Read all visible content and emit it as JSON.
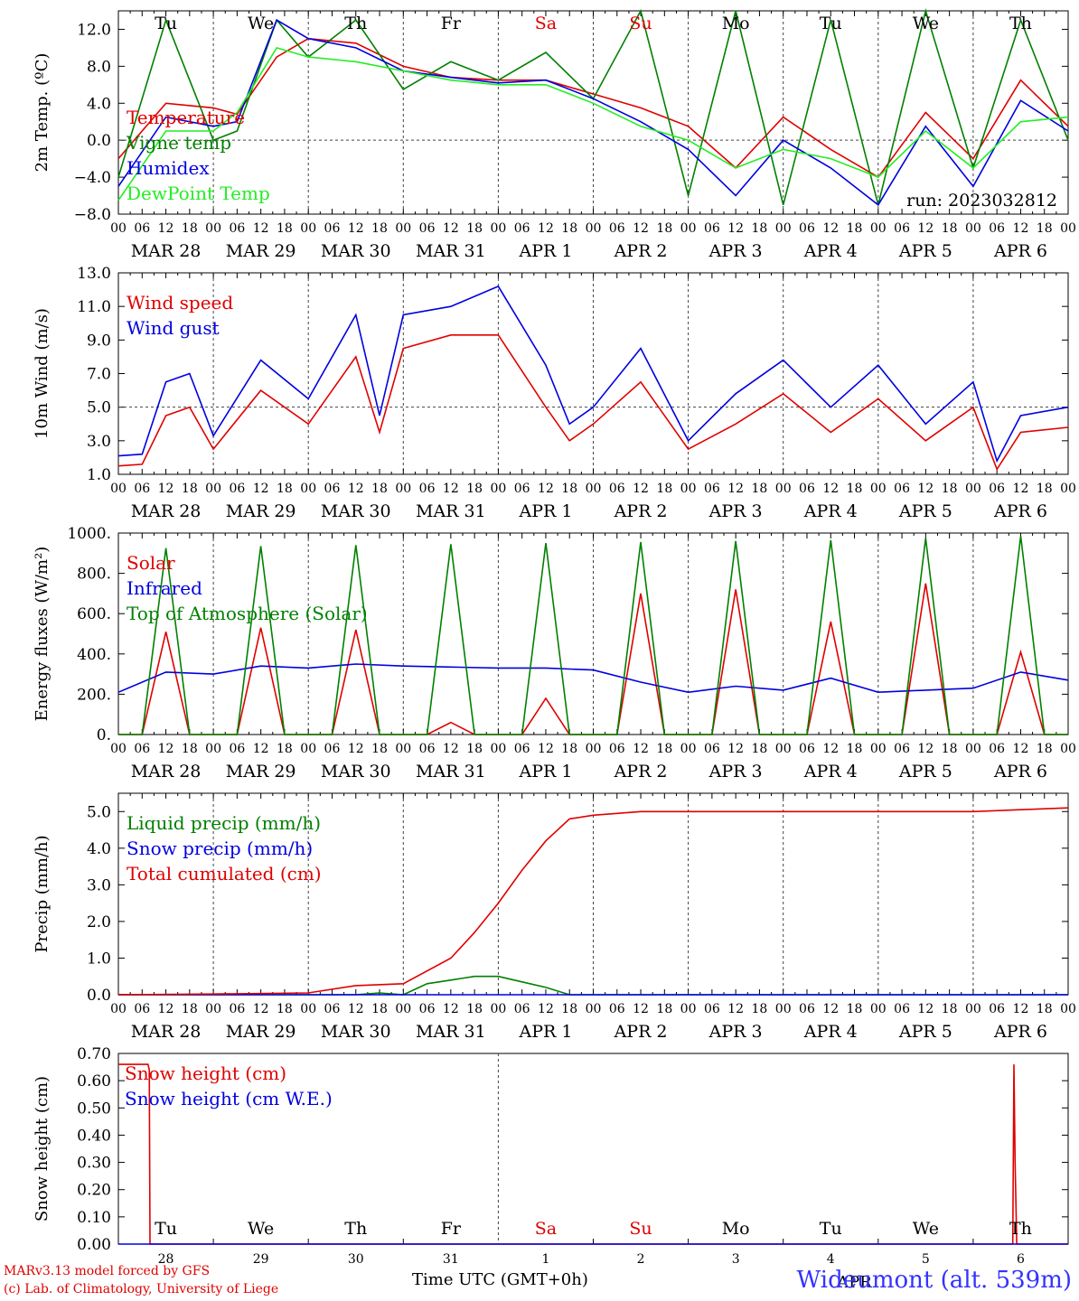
{
  "chart_data": [
    {
      "type": "line",
      "id": "temp",
      "ylabel": "2m Temp. (ºC)",
      "ylim": [
        -8,
        14
      ],
      "yticks": [
        -8,
        -4,
        0,
        4,
        8,
        12
      ],
      "ytick_labels": [
        "−8.0",
        "−4.0",
        "0.0",
        "4.0",
        "8.0",
        "12.0"
      ],
      "ref_line": 0,
      "day_labels_top": [
        "Tu",
        "We",
        "Th",
        "Fr",
        "Sa",
        "Su",
        "Mo",
        "Tu",
        "We",
        "Th"
      ],
      "annotation": "run: 2023032812",
      "series": [
        {
          "name": "Temperature",
          "color": "#e00000",
          "x": [
            0,
            12,
            24,
            30,
            40,
            48,
            60,
            72,
            84,
            96,
            108,
            120,
            132,
            144,
            156,
            168,
            180,
            192,
            204,
            216,
            228,
            240
          ],
          "y": [
            -2,
            4,
            3.5,
            2.8,
            9,
            11,
            10.5,
            8,
            6.8,
            6.5,
            6.5,
            5,
            3.5,
            1.5,
            -3,
            2.5,
            -1,
            -4,
            3,
            -2,
            6.5,
            1.5
          ]
        },
        {
          "name": "Vigne temp",
          "color": "#008000",
          "x": [
            0,
            12,
            24,
            30,
            40,
            48,
            60,
            72,
            84,
            96,
            108,
            120,
            132,
            144,
            156,
            168,
            180,
            192,
            204,
            216,
            228,
            240
          ],
          "y": [
            -4,
            13,
            0,
            1,
            13,
            9,
            13,
            5.5,
            8.5,
            6.5,
            9.5,
            4.5,
            14,
            -6,
            14,
            -7,
            13,
            -7,
            14,
            -3,
            13,
            0
          ]
        },
        {
          "name": "Humidex",
          "color": "#0000e0",
          "x": [
            0,
            12,
            24,
            30,
            40,
            48,
            60,
            72,
            84,
            96,
            108,
            120,
            132,
            144,
            156,
            168,
            180,
            192,
            204,
            216,
            228,
            240
          ],
          "y": [
            -5,
            2.5,
            1.5,
            2,
            13,
            11,
            10,
            7.5,
            6.8,
            6.2,
            6.5,
            4.5,
            2,
            -1,
            -6,
            0,
            -3,
            -7,
            1.5,
            -5,
            4.3,
            1
          ]
        },
        {
          "name": "DewPoint Temp",
          "color": "#22ee22",
          "x": [
            0,
            12,
            24,
            30,
            40,
            48,
            60,
            72,
            84,
            96,
            108,
            120,
            132,
            144,
            156,
            168,
            180,
            192,
            204,
            216,
            228,
            240
          ],
          "y": [
            -6.5,
            1,
            1,
            3,
            10,
            9,
            8.5,
            7.5,
            6.5,
            6,
            6,
            4,
            1.5,
            0,
            -3,
            -1,
            -2,
            -4,
            1,
            -3,
            2,
            2.5
          ]
        }
      ]
    },
    {
      "type": "line",
      "id": "wind",
      "ylabel": "10m Wind (m/s)",
      "ylim": [
        1,
        13
      ],
      "yticks": [
        1,
        3,
        5,
        7,
        9,
        11,
        13
      ],
      "ytick_labels": [
        "1.0",
        "3.0",
        "5.0",
        "7.0",
        "9.0",
        "11.0",
        "13.0"
      ],
      "ref_line": 5,
      "series": [
        {
          "name": "Wind speed",
          "color": "#e00000",
          "x": [
            0,
            6,
            12,
            18,
            24,
            36,
            48,
            60,
            66,
            72,
            84,
            96,
            108,
            114,
            120,
            132,
            144,
            156,
            168,
            180,
            192,
            204,
            216,
            222,
            228,
            240
          ],
          "y": [
            1.5,
            1.6,
            4.5,
            5,
            2.5,
            6,
            4,
            8,
            3.5,
            8.5,
            9.3,
            9.3,
            5,
            3,
            4,
            6.5,
            2.5,
            4,
            5.8,
            3.5,
            5.5,
            3,
            5,
            1.3,
            3.5,
            3.8
          ]
        },
        {
          "name": "Wind gust",
          "color": "#0000e0",
          "x": [
            0,
            6,
            12,
            18,
            24,
            36,
            48,
            60,
            66,
            72,
            84,
            96,
            108,
            114,
            120,
            132,
            144,
            156,
            168,
            180,
            192,
            204,
            216,
            222,
            228,
            240
          ],
          "y": [
            2.1,
            2.2,
            6.5,
            7,
            3.3,
            7.8,
            5.5,
            10.5,
            4.5,
            10.5,
            11,
            12.2,
            7.5,
            4,
            5,
            8.5,
            3,
            5.8,
            7.8,
            5,
            7.5,
            4,
            6.5,
            1.8,
            4.5,
            5
          ]
        }
      ]
    },
    {
      "type": "line",
      "id": "energy",
      "ylabel": "Energy fluxes (W/m²)",
      "ylim": [
        0,
        1000
      ],
      "yticks": [
        0,
        200,
        400,
        600,
        800,
        1000
      ],
      "ytick_labels": [
        "0.",
        "200.",
        "400.",
        "600.",
        "800.",
        "1000."
      ],
      "series": [
        {
          "name": "Solar",
          "color": "#e00000",
          "x": [
            0,
            6,
            12,
            18,
            24,
            30,
            36,
            42,
            48,
            54,
            60,
            66,
            72,
            78,
            84,
            90,
            96,
            102,
            108,
            114,
            120,
            126,
            132,
            138,
            144,
            150,
            156,
            162,
            168,
            174,
            180,
            186,
            192,
            198,
            204,
            210,
            216,
            222,
            228,
            234,
            240
          ],
          "y": [
            0,
            0,
            510,
            0,
            0,
            0,
            530,
            0,
            0,
            0,
            520,
            0,
            0,
            0,
            60,
            0,
            0,
            0,
            180,
            0,
            0,
            0,
            700,
            0,
            0,
            0,
            720,
            0,
            0,
            0,
            560,
            0,
            0,
            0,
            750,
            0,
            0,
            0,
            410,
            0,
            0
          ]
        },
        {
          "name": "Infrared",
          "color": "#0000e0",
          "x": [
            0,
            12,
            24,
            36,
            48,
            60,
            72,
            84,
            96,
            108,
            120,
            132,
            144,
            156,
            168,
            180,
            192,
            204,
            216,
            228,
            240
          ],
          "y": [
            210,
            310,
            300,
            340,
            330,
            350,
            340,
            335,
            330,
            330,
            320,
            260,
            210,
            240,
            220,
            280,
            210,
            220,
            230,
            310,
            270
          ]
        },
        {
          "name": "Top of Atmosphere (Solar)",
          "color": "#008000",
          "x": [
            0,
            6,
            12,
            18,
            24,
            30,
            36,
            42,
            48,
            54,
            60,
            66,
            72,
            78,
            84,
            90,
            96,
            102,
            108,
            114,
            120,
            126,
            132,
            138,
            144,
            150,
            156,
            162,
            168,
            174,
            180,
            186,
            192,
            198,
            204,
            210,
            216,
            222,
            228,
            234,
            240
          ],
          "y": [
            0,
            0,
            925,
            0,
            0,
            0,
            935,
            0,
            0,
            0,
            940,
            0,
            0,
            0,
            945,
            0,
            0,
            0,
            950,
            0,
            0,
            0,
            955,
            0,
            0,
            0,
            960,
            0,
            0,
            0,
            965,
            0,
            0,
            0,
            975,
            0,
            0,
            0,
            985,
            0,
            0
          ]
        }
      ]
    },
    {
      "type": "line",
      "id": "precip",
      "ylabel": "Precip (mm/h)",
      "ylim": [
        0,
        5.5
      ],
      "yticks": [
        0,
        1,
        2,
        3,
        4,
        5
      ],
      "ytick_labels": [
        "0.0",
        "1.0",
        "2.0",
        "3.0",
        "4.0",
        "5.0"
      ],
      "series": [
        {
          "name": "Liquid precip (mm/h)",
          "color": "#008000",
          "x": [
            0,
            60,
            66,
            72,
            78,
            84,
            90,
            96,
            102,
            108,
            114,
            120,
            240
          ],
          "y": [
            0,
            0,
            0.05,
            0,
            0.3,
            0.4,
            0.5,
            0.5,
            0.35,
            0.2,
            0,
            0,
            0
          ]
        },
        {
          "name": "Snow precip (mm/h)",
          "color": "#0000e0",
          "x": [
            0,
            240
          ],
          "y": [
            0,
            0
          ]
        },
        {
          "name": "Total cumulated (cm)",
          "color": "#e00000",
          "x": [
            0,
            24,
            48,
            60,
            72,
            84,
            90,
            96,
            102,
            108,
            114,
            120,
            132,
            144,
            216,
            228,
            240
          ],
          "y": [
            0,
            0.02,
            0.05,
            0.25,
            0.3,
            1.0,
            1.7,
            2.5,
            3.4,
            4.2,
            4.8,
            4.9,
            5.0,
            5.0,
            5.0,
            5.05,
            5.1
          ]
        }
      ]
    },
    {
      "type": "line",
      "id": "snow",
      "ylabel": "Snow height (cm)",
      "ylim": [
        0,
        0.7
      ],
      "yticks": [
        0,
        0.1,
        0.2,
        0.3,
        0.4,
        0.5,
        0.6,
        0.7
      ],
      "ytick_labels": [
        "0.00",
        "0.10",
        "0.20",
        "0.30",
        "0.40",
        "0.50",
        "0.60",
        "0.70"
      ],
      "day_labels_bottom": [
        "Tu",
        "We",
        "Th",
        "Fr",
        "Sa",
        "Su",
        "Mo",
        "Tu",
        "We",
        "Th"
      ],
      "date_labels": [
        "28",
        "29",
        "30",
        "31",
        "1",
        "2",
        "3",
        "4",
        "5",
        "6"
      ],
      "month_label": "APR",
      "series": [
        {
          "name": "Snow height (cm)",
          "color": "#e00000",
          "x": [
            0,
            7.5,
            7.8,
            8,
            226,
            226.3,
            226.6,
            227,
            240
          ],
          "y": [
            0.66,
            0.66,
            0.64,
            0,
            0,
            0.66,
            0.3,
            0,
            0
          ]
        },
        {
          "name": "Snow height (cm W.E.)",
          "color": "#0000e0",
          "x": [
            0,
            240
          ],
          "y": [
            0,
            0
          ]
        }
      ]
    }
  ],
  "x_axis": {
    "hour_labels": [
      "00",
      "06",
      "12",
      "18"
    ],
    "end_label": "00",
    "date_labels": [
      "MAR 28",
      "MAR 29",
      "MAR 30",
      "MAR 31",
      "APR  1",
      "APR  2",
      "APR  3",
      "APR  4",
      "APR  5",
      "APR  6"
    ],
    "title": "Time UTC (GMT+0h)"
  },
  "weekend_color": "#e00000",
  "weekend_days": [
    4,
    5
  ],
  "footer": {
    "credit_line1": "MARv3.13 model forced by GFS",
    "credit_line2": "(c) Lab. of Climatology, University of Liege",
    "station": "Wideumont (alt. 539m)"
  }
}
